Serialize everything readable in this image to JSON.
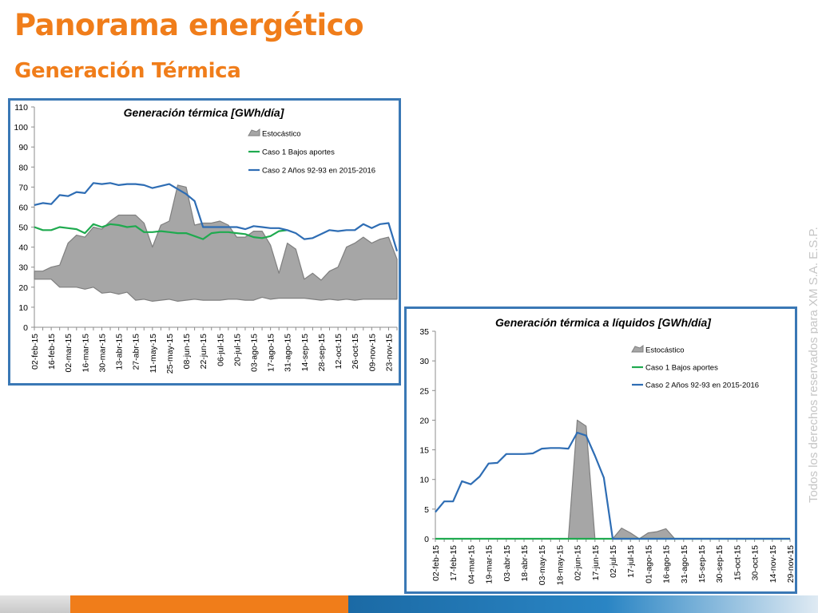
{
  "page": {
    "title": "Panorama energético",
    "subtitle": "Generación Térmica",
    "watermark": "Todos los derechos reservados para XM S.A. E.S.P."
  },
  "colors": {
    "title": "#f07d1a",
    "subtitle": "#f07d1a",
    "frame": "#3a78b5",
    "stochastic_fill": "#a6a6a6",
    "stochastic_edge": "#7f7f7f",
    "caso1": "#1faa4f",
    "caso2": "#2e6db4",
    "watermark": "#c6c6c6"
  },
  "chart_data": [
    {
      "type": "area",
      "title": "Generación térmica [GWh/día]",
      "xlabel": "",
      "ylabel": "",
      "ylim": [
        0,
        110
      ],
      "yticks": [
        0,
        10,
        20,
        30,
        40,
        50,
        60,
        70,
        80,
        90,
        100,
        110
      ],
      "grid": false,
      "legend_position": "top-right",
      "x": [
        "02-feb-15",
        "09-feb-15",
        "16-feb-15",
        "23-feb-15",
        "02-mar-15",
        "09-mar-15",
        "16-mar-15",
        "23-mar-15",
        "30-mar-15",
        "06-abr-15",
        "13-abr-15",
        "20-abr-15",
        "27-abr-15",
        "04-may-15",
        "11-may-15",
        "18-may-15",
        "25-may-15",
        "01-jun-15",
        "08-jun-15",
        "15-jun-15",
        "22-jun-15",
        "29-jun-15",
        "06-jul-15",
        "13-jul-15",
        "20-jul-15",
        "27-jul-15",
        "03-ago-15",
        "10-ago-15",
        "17-ago-15",
        "24-ago-15",
        "31-ago-15",
        "07-sep-15",
        "14-sep-15",
        "21-sep-15",
        "28-sep-15",
        "05-oct-15",
        "12-oct-15",
        "19-oct-15",
        "26-oct-15",
        "02-nov-15",
        "09-nov-15",
        "16-nov-15",
        "23-nov-15",
        "30-nov-15"
      ],
      "xticks": [
        "02-feb-15",
        "16-feb-15",
        "02-mar-15",
        "16-mar-15",
        "30-mar-15",
        "13-abr-15",
        "27-abr-15",
        "11-may-15",
        "25-may-15",
        "08-jun-15",
        "22-jun-15",
        "06-jul-15",
        "20-jul-15",
        "03-ago-15",
        "17-ago-15",
        "31-ago-15",
        "14-sep-15",
        "28-sep-15",
        "12-oct-15",
        "26-oct-15",
        "09-nov-15",
        "23-nov-15"
      ],
      "series": [
        {
          "name": "Estocástico",
          "kind": "band",
          "lower": [
            24,
            24,
            24,
            20,
            20,
            20,
            19,
            20,
            17,
            17.5,
            16.5,
            17.5,
            13.5,
            14,
            13,
            13.5,
            14,
            13,
            13.5,
            14,
            13.5,
            13.5,
            13.5,
            14,
            14,
            13.5,
            13.5,
            15,
            14,
            14.5,
            14.5,
            14.5,
            14.5,
            14,
            13.5,
            14,
            13.5,
            14,
            13.5,
            14,
            14,
            14,
            14,
            14
          ],
          "upper": [
            28,
            28,
            30,
            31,
            42,
            46,
            45,
            50,
            49,
            53,
            56,
            56,
            56,
            52,
            40,
            51,
            53,
            71,
            70,
            51,
            52,
            52,
            53,
            51,
            45,
            45,
            48,
            48,
            41,
            27,
            42,
            39,
            24,
            27,
            23.5,
            28,
            30,
            40,
            42,
            45,
            42,
            44,
            45,
            34
          ]
        },
        {
          "name": "Caso 1 Bajos aportes",
          "kind": "line",
          "values": [
            50,
            48.5,
            48.5,
            50,
            49.5,
            49,
            47,
            51.5,
            50,
            51.5,
            51,
            50,
            50.5,
            47.5,
            47.5,
            48,
            47.5,
            47,
            47,
            45.5,
            44,
            47,
            47.5,
            47.5,
            47,
            46.5,
            45,
            44.5,
            45.5,
            48,
            48.5,
            null,
            null,
            null,
            null,
            null,
            null,
            null,
            null,
            null,
            null,
            null,
            null,
            null
          ]
        },
        {
          "name": "Caso 2  Años 92-93 en 2015-2016",
          "kind": "line",
          "values": [
            61,
            62,
            61.5,
            66,
            65.5,
            67.5,
            67,
            72,
            71.5,
            72,
            71,
            71.5,
            71.5,
            71,
            69.5,
            70.5,
            71.5,
            69,
            66.5,
            63,
            50,
            50,
            50,
            50,
            50,
            49,
            50.5,
            50,
            49.5,
            49.5,
            48.5,
            47,
            44,
            44.5,
            46.5,
            48.5,
            48,
            48.5,
            48.5,
            51.5,
            49.5,
            51.5,
            52,
            38
          ]
        }
      ]
    },
    {
      "type": "area",
      "title": "Generación térmica a líquidos [GWh/día]",
      "xlabel": "",
      "ylabel": "",
      "ylim": [
        0,
        35
      ],
      "yticks": [
        0,
        5,
        10,
        15,
        20,
        25,
        30,
        35
      ],
      "grid": false,
      "legend_position": "top-right",
      "x": [
        "02-feb-15",
        "09-feb-15",
        "17-feb-15",
        "24-feb-15",
        "04-mar-15",
        "11-mar-15",
        "19-mar-15",
        "26-mar-15",
        "03-abr-15",
        "10-abr-15",
        "18-abr-15",
        "25-abr-15",
        "03-may-15",
        "10-may-15",
        "18-may-15",
        "25-may-15",
        "02-jun-15",
        "09-jun-15",
        "17-jun-15",
        "24-jun-15",
        "02-jul-15",
        "09-jul-15",
        "17-jul-15",
        "24-jul-15",
        "01-ago-15",
        "08-ago-15",
        "16-ago-15",
        "23-ago-15",
        "31-ago-15",
        "07-sep-15",
        "15-sep-15",
        "22-sep-15",
        "30-sep-15",
        "07-oct-15",
        "15-oct-15",
        "22-oct-15",
        "30-oct-15",
        "06-nov-15",
        "14-nov-15",
        "21-nov-15",
        "29-nov-15"
      ],
      "xticks": [
        "02-feb-15",
        "17-feb-15",
        "04-mar-15",
        "19-mar-15",
        "03-abr-15",
        "18-abr-15",
        "03-may-15",
        "18-may-15",
        "02-jun-15",
        "17-jun-15",
        "02-jul-15",
        "17-jul-15",
        "01-ago-15",
        "16-ago-15",
        "31-ago-15",
        "15-sep-15",
        "30-sep-15",
        "15-oct-15",
        "30-oct-15",
        "14-nov-15",
        "29-nov-15"
      ],
      "series": [
        {
          "name": "Estocástico",
          "kind": "band",
          "lower": [
            0,
            0,
            0,
            0,
            0,
            0,
            0,
            0,
            0,
            0,
            0,
            0,
            0,
            0,
            0,
            0,
            0,
            0,
            0,
            0,
            0,
            0,
            0,
            0,
            0,
            0,
            0,
            0,
            0,
            0,
            0,
            0,
            0,
            0,
            0,
            0,
            0,
            0,
            0,
            0,
            0
          ],
          "upper": [
            0,
            0,
            0,
            0,
            0,
            0,
            0,
            0,
            0,
            0,
            0,
            0,
            0,
            0,
            0,
            0,
            20,
            19,
            0,
            0,
            0,
            1.8,
            1,
            0,
            1,
            1.2,
            1.7,
            0,
            0,
            0,
            0,
            0,
            0,
            0,
            0,
            0,
            0,
            0,
            0,
            0,
            0
          ]
        },
        {
          "name": "Caso 1 Bajos aportes",
          "kind": "line",
          "values": [
            0,
            0,
            0,
            0,
            0,
            0,
            0,
            0,
            0,
            0,
            0,
            0,
            0,
            0,
            0,
            0,
            0,
            0,
            0,
            0,
            0,
            0,
            0,
            0,
            0,
            0,
            0,
            0,
            0,
            0,
            0,
            0,
            0,
            0,
            0,
            0,
            0,
            0,
            0,
            0,
            0
          ]
        },
        {
          "name": "Caso 2  Años 92-93 en 2015-2016",
          "kind": "line",
          "values": [
            4.5,
            6.3,
            6.3,
            9.7,
            9.2,
            10.5,
            12.7,
            12.8,
            14.3,
            14.3,
            14.3,
            14.4,
            15.2,
            15.3,
            15.3,
            15.2,
            17.9,
            17.4,
            14,
            10.3,
            0,
            0,
            0,
            0,
            0,
            0,
            0,
            0,
            0,
            0,
            0,
            0,
            0,
            0,
            0,
            0,
            0,
            0,
            0,
            0,
            0
          ]
        }
      ]
    }
  ]
}
